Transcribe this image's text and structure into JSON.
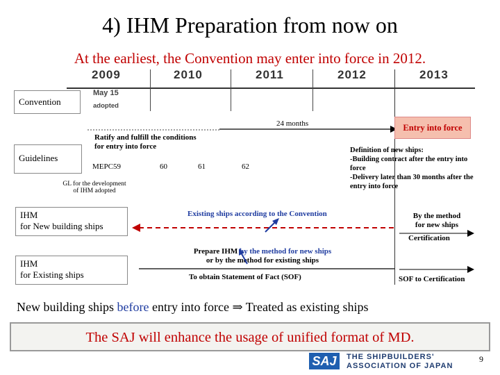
{
  "title": "4) IHM Preparation from now on",
  "subtitle": "At the earliest, the Convention may enter into force in 2012.",
  "years": [
    "2009",
    "2010",
    "2011",
    "2012",
    "2013"
  ],
  "rows": {
    "convention": "Convention",
    "guidelines": "Guidelines",
    "ihm_new": "IHM\nfor New building ships",
    "ihm_existing": "IHM\nfor Existing ships"
  },
  "may15": "May 15",
  "adopted": "adopted",
  "months24": "24 months",
  "entry_into_force": "Entry into force",
  "ratify": "Ratify and fulfill the conditions\nfor entry into force",
  "mepc": [
    "MEPC59",
    "60",
    "61",
    "62"
  ],
  "gl_adopted": "GL for the development\nof IHM adopted",
  "definition": "Definition of new ships:\n-Building contract after the entry into force\n-Delivery later than 30 months after the entry into force",
  "existing_ships_convention": "Existing ships according to the Convention",
  "by_method_new": "By the method\nfor new ships",
  "certification": "Certification",
  "prepare_ihm_pre": "Prepare IHM ",
  "prepare_ihm_blue": "by the method for new ships",
  "prepare_ihm_post": "or by the method for existing ships",
  "sof_obtain": "To obtain Statement of Fact (SOF)",
  "sof_cert": "SOF to Certification",
  "note_pre": "New building ships ",
  "note_blue": "before",
  "note_post": " entry into force ⇒ Treated as existing ships",
  "banner": "The SAJ will enhance the usage of unified format of MD.",
  "logo_mark": "SAJ",
  "logo_line1": "THE SHIPBUILDERS'",
  "logo_line2": "ASSOCIATION OF JAPAN",
  "page_number": "9",
  "colors": {
    "accent": "#c00000",
    "blue": "#1f3ca0",
    "entry_bg": "#f5bfae"
  }
}
